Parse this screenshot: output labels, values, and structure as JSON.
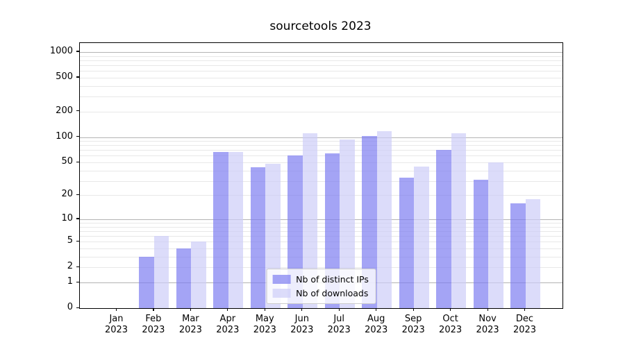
{
  "title": "sourcetools 2023",
  "legend": {
    "items": [
      {
        "label": "Nb of distinct IPs"
      },
      {
        "label": "Nb of downloads"
      }
    ]
  },
  "colors": {
    "bar_distinct_ips": "rgba(126,126,241,0.7)",
    "bar_downloads": "rgba(205,205,248,0.7)",
    "grid_major": "#b3b3b3",
    "grid_minor": "#e8e8e8",
    "axis": "#000000",
    "legend_border": "#cccccc"
  },
  "chart_data": {
    "type": "bar",
    "title": "sourcetools 2023",
    "categories": [
      "Jan 2023",
      "Feb 2023",
      "Mar 2023",
      "Apr 2023",
      "May 2023",
      "Jun 2023",
      "Jul 2023",
      "Aug 2023",
      "Sep 2023",
      "Oct 2023",
      "Nov 2023",
      "Dec 2023"
    ],
    "series": [
      {
        "name": "Nb of distinct IPs",
        "color": "rgba(126,126,241,0.7)",
        "values": [
          0,
          3,
          4,
          66,
          44,
          60,
          64,
          103,
          33,
          70,
          31,
          16
        ]
      },
      {
        "name": "Nb of downloads",
        "color": "rgba(205,205,248,0.7)",
        "values": [
          0,
          6,
          5,
          66,
          48,
          110,
          93,
          118,
          45,
          110,
          50,
          18
        ]
      }
    ],
    "yticks": [
      0,
      1,
      2,
      5,
      10,
      20,
      50,
      100,
      200,
      500,
      1000
    ],
    "yscale": "log1p",
    "ylim": [
      0,
      1265
    ],
    "xlabel": "",
    "ylabel": "",
    "grid": "horizontal, major and minor",
    "legend_position": "lower center"
  }
}
